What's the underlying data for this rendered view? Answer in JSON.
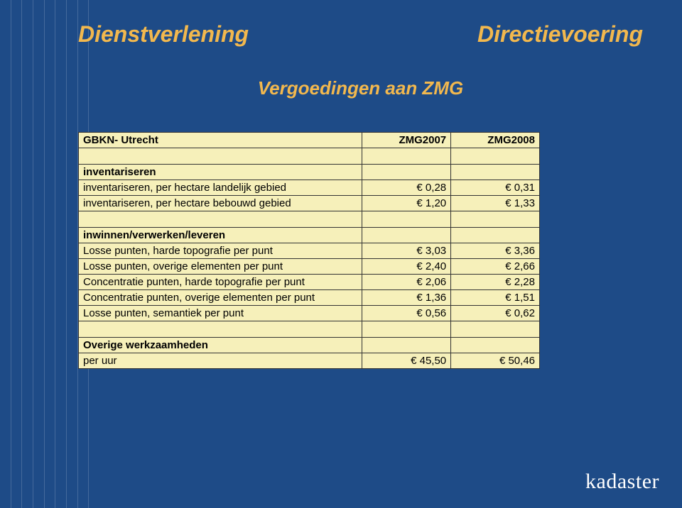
{
  "header": {
    "left": "Dienstverlening",
    "right": "Directievoering"
  },
  "subtitle": "Vergoedingen aan ZMG",
  "table": {
    "title": "GBKN- Utrecht",
    "col1": "ZMG2007",
    "col2": "ZMG2008",
    "sections": [
      {
        "name": "inventariseren",
        "rows": [
          {
            "label": "inventariseren, per hectare landelijk gebied",
            "v1": "€ 0,28",
            "v2": "€ 0,31"
          },
          {
            "label": "inventariseren, per hectare bebouwd gebied",
            "v1": "€ 1,20",
            "v2": "€ 1,33"
          }
        ]
      },
      {
        "name": "inwinnen/verwerken/leveren",
        "rows": [
          {
            "label": "Losse punten, harde topografie per punt",
            "v1": "€ 3,03",
            "v2": "€ 3,36"
          },
          {
            "label": "Losse punten, overige elementen per punt",
            "v1": "€ 2,40",
            "v2": "€ 2,66"
          },
          {
            "label": "Concentratie punten, harde topografie per punt",
            "v1": "€ 2,06",
            "v2": "€ 2,28"
          },
          {
            "label": "Concentratie punten, overige elementen per punt",
            "v1": "€ 1,36",
            "v2": "€ 1,51"
          },
          {
            "label": "Losse punten, semantiek per punt",
            "v1": "€ 0,56",
            "v2": "€ 0,62"
          }
        ]
      },
      {
        "name": "Overige werkzaamheden",
        "rows": [
          {
            "label": "per uur",
            "v1": "€ 45,50",
            "v2": "€ 50,46"
          }
        ]
      }
    ]
  },
  "brand": "kadaster",
  "style": {
    "background_color": "#1e4b87",
    "accent_color": "#f2b84e",
    "table_bg": "#f6f0ba"
  }
}
